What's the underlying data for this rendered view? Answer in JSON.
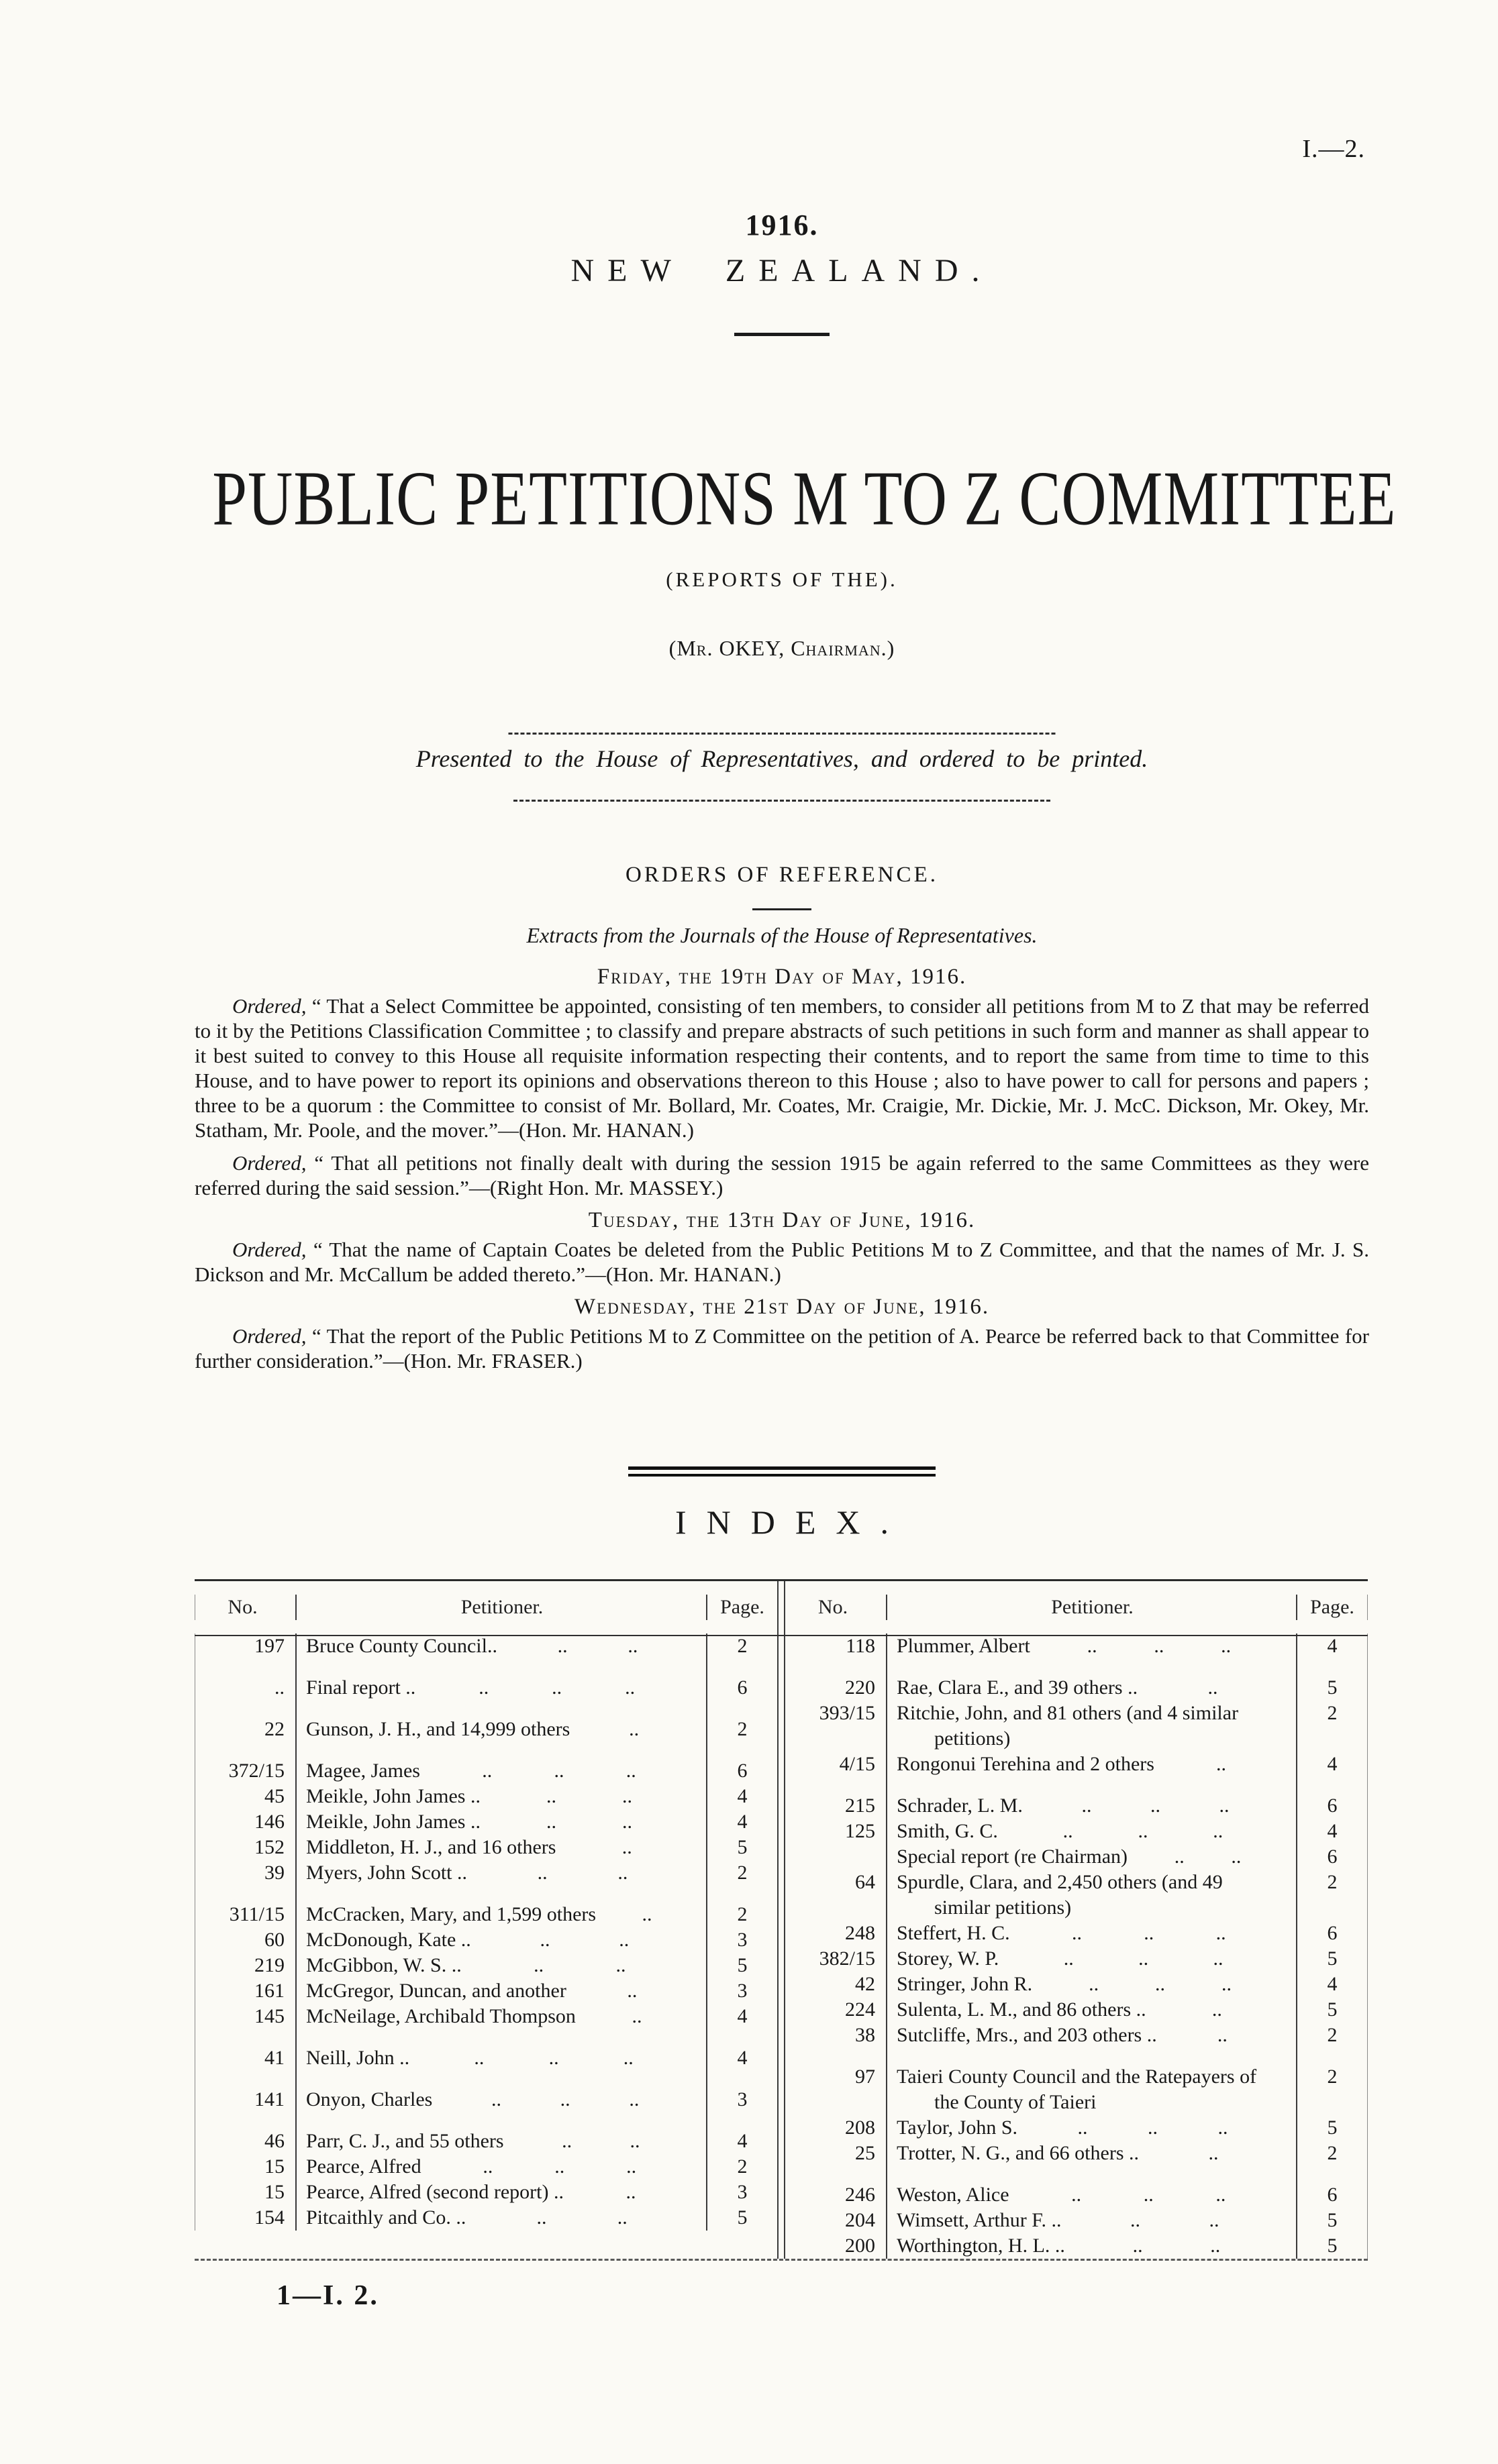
{
  "colors": {
    "paper": "#fbfaf5",
    "ink": "#181818"
  },
  "page": {
    "doc_ref": "I.—2.",
    "year": "1916.",
    "country": "NEW ZEALAND.",
    "title": "PUBLIC PETITIONS M TO Z COMMITTEE",
    "subtitle": "(REPORTS OF THE).",
    "chairman_line": "(Mr. OKEY, Chairman.)",
    "presented_line": "Presented to the House of Representatives, and ordered to be printed.",
    "footer": "1—I. 2."
  },
  "orders": {
    "heading": "ORDERS OF REFERENCE.",
    "extracts_line": "Extracts from the Journals of the House of Representatives.",
    "sections": [
      {
        "date_heading": "Friday, the 19th Day of May, 1916.",
        "paragraphs": [
          {
            "lead": "Ordered,",
            "text": " “ That a Select Committee be appointed, consisting of ten members, to consider all petitions from M to Z that may be referred to it by the Petitions Classification Committee ; to classify and prepare abstracts of such petitions in such form and manner as shall appear to it best suited to convey to this House all requisite information respecting their contents, and to report the same from time to time to this House, and to have power to report its opinions and observations thereon to this House ;  also to have power to call for persons and papers ;  three to be a quorum :  the Committee to consist of Mr. Bollard, Mr. Coates, Mr. Craigie, Mr. Dickie, Mr. J. McC. Dickson, Mr. Okey, Mr. Statham, Mr. Poole, and the mover.”—(Hon. Mr. HANAN.)"
          },
          {
            "lead": "Ordered,",
            "text": " “ That all petitions not finally dealt with during the session 1915 be again referred to the same Committees as they were referred during the said session.”—(Right Hon. Mr. MASSEY.)"
          }
        ]
      },
      {
        "date_heading": "Tuesday, the 13th Day of June, 1916.",
        "paragraphs": [
          {
            "lead": "Ordered,",
            "text": " “ That the name of Captain Coates be deleted from the Public Petitions M to Z Committee, and that the names of Mr. J. S. Dickson and Mr. McCallum be added thereto.”—(Hon. Mr. HANAN.)"
          }
        ]
      },
      {
        "date_heading": "Wednesday, the 21st Day of June, 1916.",
        "paragraphs": [
          {
            "lead": "Ordered,",
            "text": " “ That the report of the Public Petitions M to Z Committee on the petition of A. Pearce be referred back to that Committee for further consideration.”—(Hon. Mr. FRASER.)"
          }
        ]
      }
    ]
  },
  "index": {
    "heading": "INDEX.",
    "columns": {
      "no": "No.",
      "petitioner": "Petitioner.",
      "page": "Page."
    },
    "left_rows": [
      {
        "no": "197",
        "name": "Bruce County Council..",
        "dots": 2,
        "page": "2",
        "gap": false
      },
      {
        "no": "..",
        "name": "Final report ..",
        "dots": 3,
        "page": "6",
        "gap": true
      },
      {
        "no": "22",
        "name": "Gunson, J. H., and 14,999 others",
        "dots": 1,
        "page": "2",
        "gap": true
      },
      {
        "no": "372/15",
        "name": "Magee, James",
        "dots": 3,
        "page": "6",
        "gap": true
      },
      {
        "no": "45",
        "name": "Meikle, John James ..",
        "dots": 2,
        "page": "4",
        "gap": false
      },
      {
        "no": "146",
        "name": "Meikle, John James ..",
        "dots": 2,
        "page": "4",
        "gap": false
      },
      {
        "no": "152",
        "name": "Middleton, H. J., and 16 others",
        "dots": 1,
        "page": "5",
        "gap": false
      },
      {
        "no": "39",
        "name": "Myers, John Scott ..",
        "dots": 2,
        "page": "2",
        "gap": false
      },
      {
        "no": "311/15",
        "name": "McCracken, Mary, and 1,599 others",
        "dots": 1,
        "page": "2",
        "gap": true
      },
      {
        "no": "60",
        "name": "McDonough, Kate ..",
        "dots": 2,
        "page": "3",
        "gap": false
      },
      {
        "no": "219",
        "name": "McGibbon, W. S. ..",
        "dots": 2,
        "page": "5",
        "gap": false
      },
      {
        "no": "161",
        "name": "McGregor, Duncan, and another",
        "dots": 1,
        "page": "3",
        "gap": false
      },
      {
        "no": "145",
        "name": "McNeilage, Archibald Thompson",
        "dots": 1,
        "page": "4",
        "gap": false
      },
      {
        "no": "41",
        "name": "Neill, John ..",
        "dots": 3,
        "page": "4",
        "gap": true
      },
      {
        "no": "141",
        "name": "Onyon, Charles",
        "dots": 3,
        "page": "3",
        "gap": true
      },
      {
        "no": "46",
        "name": "Parr, C. J., and 55 others",
        "dots": 2,
        "page": "4",
        "gap": true
      },
      {
        "no": "15",
        "name": "Pearce, Alfred",
        "dots": 3,
        "page": "2",
        "gap": false
      },
      {
        "no": "15",
        "name": "Pearce, Alfred (second report) ..",
        "dots": 1,
        "page": "3",
        "gap": false
      },
      {
        "no": "154",
        "name": "Pitcaithly and Co. ..",
        "dots": 2,
        "page": "5",
        "gap": false
      }
    ],
    "right_rows": [
      {
        "no": "118",
        "name": "Plummer, Albert",
        "dots": 3,
        "page": "4",
        "gap": false
      },
      {
        "no": "220",
        "name": "Rae, Clara E., and 39 others ..",
        "dots": 1,
        "page": "5",
        "gap": true
      },
      {
        "no": "393/15",
        "name": "Ritchie, John, and 81 others (and 4 similar petitions)",
        "dots": 0,
        "page": "2",
        "gap": false
      },
      {
        "no": "4/15",
        "name": "Rongonui Terehina and 2 others",
        "dots": 1,
        "page": "4",
        "gap": false
      },
      {
        "no": "215",
        "name": "Schrader, L. M.",
        "dots": 3,
        "page": "6",
        "gap": true
      },
      {
        "no": "125",
        "name": "Smith, G. C.",
        "dots": 3,
        "page": "4",
        "gap": false
      },
      {
        "no": "",
        "name": "Special report (re Chairman)",
        "dots": 2,
        "page": "6",
        "gap": false
      },
      {
        "no": "64",
        "name": "Spurdle, Clara, and 2,450 others (and 49 similar petitions)",
        "dots": 0,
        "page": "2",
        "gap": false
      },
      {
        "no": "248",
        "name": "Steffert, H. C.",
        "dots": 3,
        "page": "6",
        "gap": false
      },
      {
        "no": "382/15",
        "name": "Storey, W. P.",
        "dots": 3,
        "page": "5",
        "gap": false
      },
      {
        "no": "42",
        "name": "Stringer, John R.",
        "dots": 3,
        "page": "4",
        "gap": false
      },
      {
        "no": "224",
        "name": "Sulenta, L. M., and 86 others ..",
        "dots": 1,
        "page": "5",
        "gap": false
      },
      {
        "no": "38",
        "name": "Sutcliffe, Mrs., and 203 others ..",
        "dots": 1,
        "page": "2",
        "gap": false
      },
      {
        "no": "97",
        "name": "Taieri County Council and the Ratepayers of the County of Taieri",
        "dots": 0,
        "page": "2",
        "gap": true
      },
      {
        "no": "208",
        "name": "Taylor, John S.",
        "dots": 3,
        "page": "5",
        "gap": false
      },
      {
        "no": "25",
        "name": "Trotter, N. G., and 66 others ..",
        "dots": 1,
        "page": "2",
        "gap": false
      },
      {
        "no": "246",
        "name": "Weston, Alice",
        "dots": 3,
        "page": "6",
        "gap": true
      },
      {
        "no": "204",
        "name": "Wimsett, Arthur F. ..",
        "dots": 2,
        "page": "5",
        "gap": false
      },
      {
        "no": "200",
        "name": "Worthington, H. L. ..",
        "dots": 2,
        "page": "5",
        "gap": false
      }
    ]
  }
}
